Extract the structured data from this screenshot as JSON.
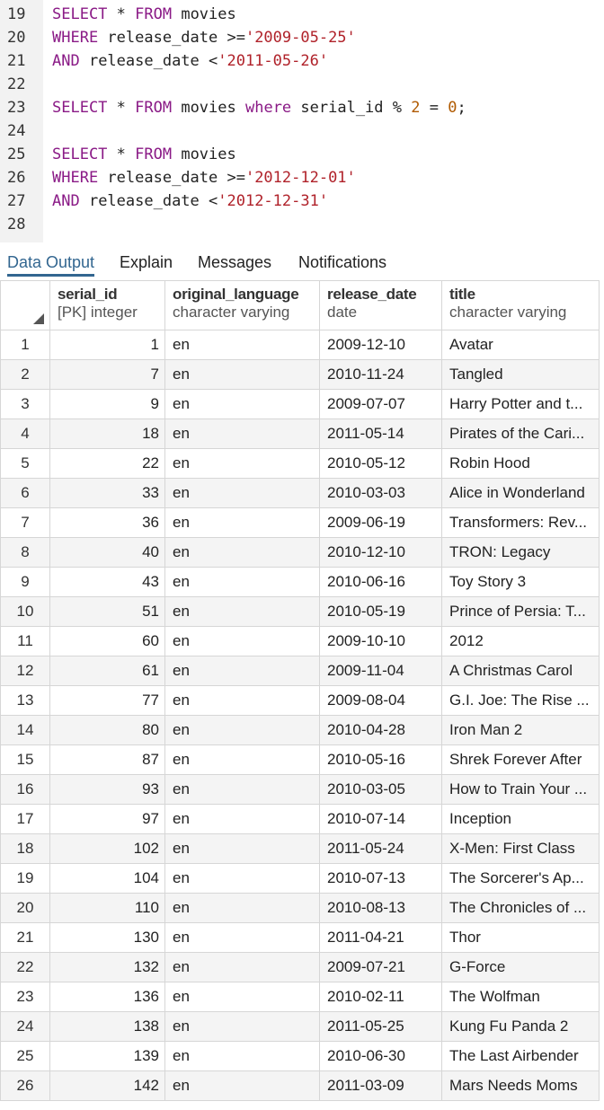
{
  "editor": {
    "lines": [
      {
        "n": "19",
        "tokens": [
          [
            "kw",
            "SELECT"
          ],
          [
            "p",
            " * "
          ],
          [
            "kw",
            "FROM"
          ],
          [
            "p",
            " movies"
          ]
        ]
      },
      {
        "n": "20",
        "tokens": [
          [
            "kw",
            "WHERE"
          ],
          [
            "p",
            " release_date >="
          ],
          [
            "str",
            "'2009-05-25'"
          ]
        ]
      },
      {
        "n": "21",
        "tokens": [
          [
            "kw",
            "AND"
          ],
          [
            "p",
            " release_date <"
          ],
          [
            "str",
            "'2011-05-26'"
          ]
        ]
      },
      {
        "n": "22",
        "tokens": []
      },
      {
        "n": "23",
        "tokens": [
          [
            "kw",
            "SELECT"
          ],
          [
            "p",
            " * "
          ],
          [
            "kw",
            "FROM"
          ],
          [
            "p",
            " movies "
          ],
          [
            "kw",
            "where"
          ],
          [
            "p",
            " serial_id % "
          ],
          [
            "num",
            "2"
          ],
          [
            "p",
            " = "
          ],
          [
            "num",
            "0"
          ],
          [
            "p",
            ";"
          ]
        ]
      },
      {
        "n": "24",
        "tokens": []
      },
      {
        "n": "25",
        "tokens": [
          [
            "kw",
            "SELECT"
          ],
          [
            "p",
            " * "
          ],
          [
            "kw",
            "FROM"
          ],
          [
            "p",
            " movies"
          ]
        ]
      },
      {
        "n": "26",
        "tokens": [
          [
            "kw",
            "WHERE"
          ],
          [
            "p",
            " release_date >="
          ],
          [
            "str",
            "'2012-12-01'"
          ]
        ]
      },
      {
        "n": "27",
        "tokens": [
          [
            "kw",
            "AND"
          ],
          [
            "p",
            " release_date <"
          ],
          [
            "str",
            "'2012-12-31'"
          ]
        ]
      },
      {
        "n": "28",
        "tokens": []
      }
    ]
  },
  "tabs": {
    "data_output": "Data Output",
    "explain": "Explain",
    "messages": "Messages",
    "notifications": "Notifications"
  },
  "columns": [
    {
      "name": "serial_id",
      "type": "[PK] integer"
    },
    {
      "name": "original_language",
      "type": "character varying"
    },
    {
      "name": "release_date",
      "type": "date"
    },
    {
      "name": "title",
      "type": "character varying"
    }
  ],
  "rows": [
    [
      "1",
      "1",
      "en",
      "2009-12-10",
      "Avatar"
    ],
    [
      "2",
      "7",
      "en",
      "2010-11-24",
      "Tangled"
    ],
    [
      "3",
      "9",
      "en",
      "2009-07-07",
      "Harry Potter and t..."
    ],
    [
      "4",
      "18",
      "en",
      "2011-05-14",
      "Pirates of the Cari..."
    ],
    [
      "5",
      "22",
      "en",
      "2010-05-12",
      "Robin Hood"
    ],
    [
      "6",
      "33",
      "en",
      "2010-03-03",
      "Alice in Wonderland"
    ],
    [
      "7",
      "36",
      "en",
      "2009-06-19",
      "Transformers: Rev..."
    ],
    [
      "8",
      "40",
      "en",
      "2010-12-10",
      "TRON: Legacy"
    ],
    [
      "9",
      "43",
      "en",
      "2010-06-16",
      "Toy Story 3"
    ],
    [
      "10",
      "51",
      "en",
      "2010-05-19",
      "Prince of Persia: T..."
    ],
    [
      "11",
      "60",
      "en",
      "2009-10-10",
      "2012"
    ],
    [
      "12",
      "61",
      "en",
      "2009-11-04",
      "A Christmas Carol"
    ],
    [
      "13",
      "77",
      "en",
      "2009-08-04",
      "G.I. Joe: The Rise ..."
    ],
    [
      "14",
      "80",
      "en",
      "2010-04-28",
      "Iron Man 2"
    ],
    [
      "15",
      "87",
      "en",
      "2010-05-16",
      "Shrek Forever After"
    ],
    [
      "16",
      "93",
      "en",
      "2010-03-05",
      "How to Train Your ..."
    ],
    [
      "17",
      "97",
      "en",
      "2010-07-14",
      "Inception"
    ],
    [
      "18",
      "102",
      "en",
      "2011-05-24",
      "X-Men: First Class"
    ],
    [
      "19",
      "104",
      "en",
      "2010-07-13",
      "The Sorcerer's Ap..."
    ],
    [
      "20",
      "110",
      "en",
      "2010-08-13",
      "The Chronicles of ..."
    ],
    [
      "21",
      "130",
      "en",
      "2011-04-21",
      "Thor"
    ],
    [
      "22",
      "132",
      "en",
      "2009-07-21",
      "G-Force"
    ],
    [
      "23",
      "136",
      "en",
      "2010-02-11",
      "The Wolfman"
    ],
    [
      "24",
      "138",
      "en",
      "2011-05-25",
      "Kung Fu Panda 2"
    ],
    [
      "25",
      "139",
      "en",
      "2010-06-30",
      "The Last Airbender"
    ],
    [
      "26",
      "142",
      "en",
      "2011-03-09",
      "Mars Needs Moms"
    ]
  ]
}
